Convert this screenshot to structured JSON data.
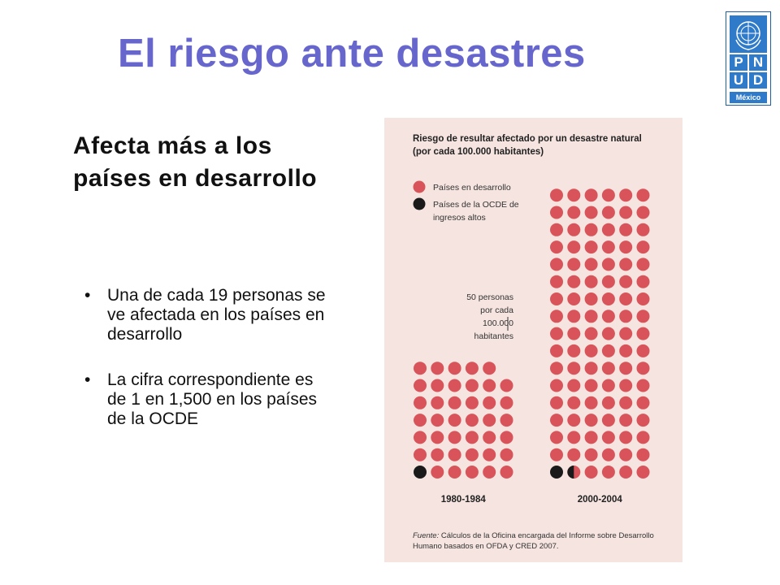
{
  "slide": {
    "title": "El riesgo ante desastres",
    "subtitle": "Afecta más a los países en desarrollo",
    "bullets": [
      "Una de cada 19 personas se ve afectada en los países en desarrollo",
      "La cifra correspondiente es de 1 en 1,500 en los países de la OCDE"
    ]
  },
  "logo": {
    "letters": [
      "P",
      "N",
      "U",
      "D"
    ],
    "country": "México",
    "color": "#2f7bc9"
  },
  "chart_data": {
    "type": "pictogram",
    "title": "Riesgo de resultar afectado por un desastre natural",
    "subtitle": "(por cada 100.000 habitantes)",
    "unit_note": "50 personas por cada 100.000 habitantes",
    "people_per_dot": 50,
    "categories": [
      "1980-1984",
      "2000-2004"
    ],
    "series": [
      {
        "name": "Países en desarrollo",
        "color": "#d9545a",
        "values": [
          2000,
          5000
        ]
      },
      {
        "name": "Países de la OCDE de ingresos altos",
        "color": "#1a1a1a",
        "values": [
          50,
          75
        ]
      }
    ],
    "source_label": "Fuente:",
    "source_text": "Cálculos de la Oficina encargada del Informe sobre Desarrollo Humano basados en OFDA y CRED 2007."
  },
  "colors": {
    "title": "#6666cc",
    "panel_bg": "#f5e4df",
    "developing": "#d9545a",
    "oecd": "#1a1a1a"
  }
}
